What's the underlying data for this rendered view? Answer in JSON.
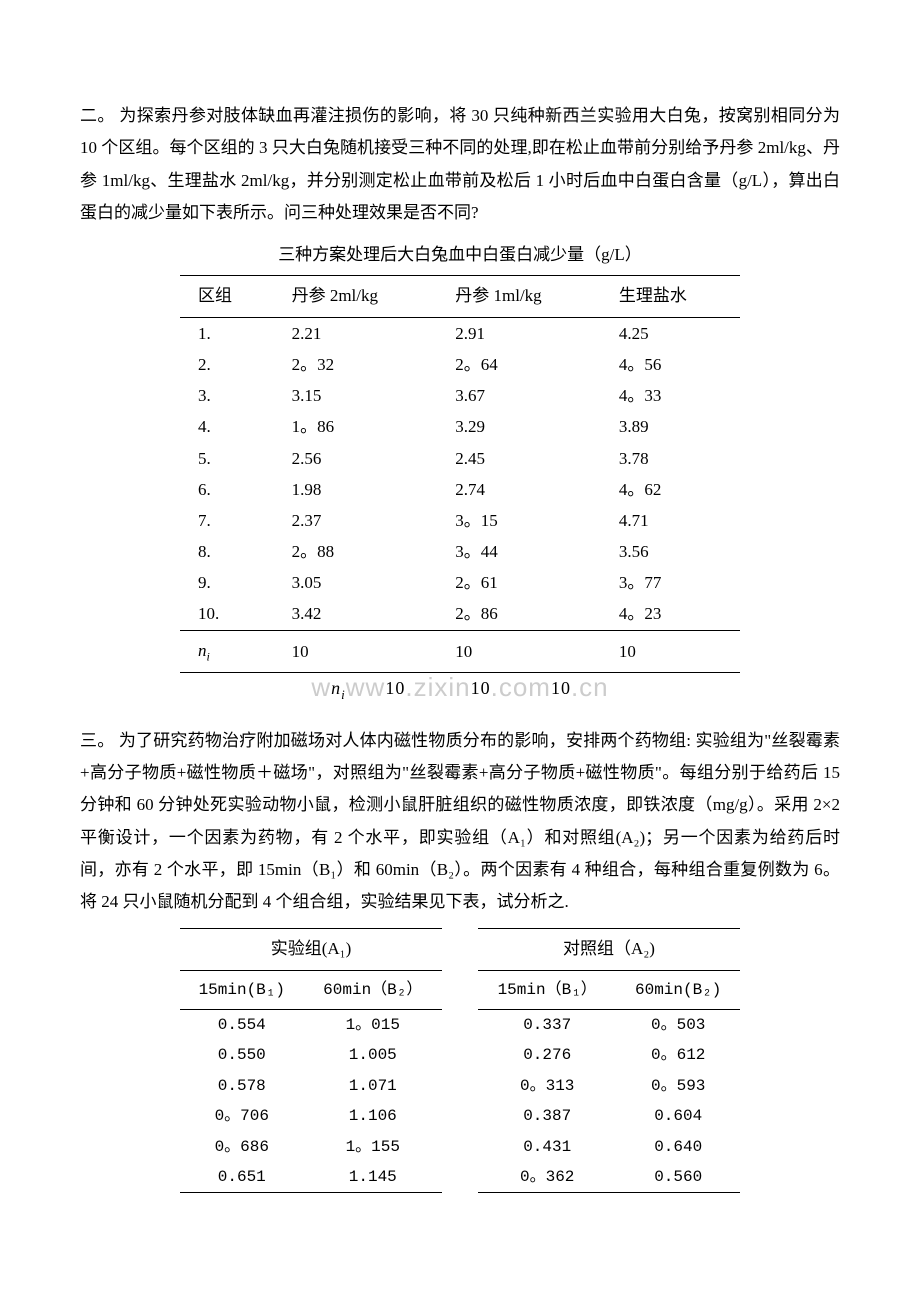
{
  "section2": {
    "paragraph": "二。 为探索丹参对肢体缺血再灌注损伤的影响，将 30 只纯种新西兰实验用大白兔，按窝别相同分为 10 个区组。每个区组的 3 只大白兔随机接受三种不同的处理,即在松止血带前分别给予丹参 2ml/kg、丹参 1ml/kg、生理盐水 2ml/kg，并分别测定松止血带前及松后 1 小时后血中白蛋白含量（g/L），算出白蛋白的减少量如下表所示。问三种处理效果是否不同?",
    "table_title": "三种方案处理后大白兔血中白蛋白减少量（g/L）",
    "headers": [
      "区组",
      "丹参 2ml/kg",
      "丹参 1ml/kg",
      "生理盐水"
    ],
    "rows": [
      [
        "1.",
        "2.21",
        "2.91",
        "4.25"
      ],
      [
        "2.",
        "2。32",
        "2。64",
        "4。56"
      ],
      [
        "3.",
        "3.15",
        "3.67",
        "4。33"
      ],
      [
        "4.",
        "1。86",
        "3.29",
        "3.89"
      ],
      [
        "5.",
        "2.56",
        "2.45",
        "3.78"
      ],
      [
        "6.",
        "1.98",
        "2.74",
        "4。62"
      ],
      [
        "7.",
        "2.37",
        "3。15",
        "4.71"
      ],
      [
        "8.",
        "2。88",
        "3。44",
        "3.56"
      ],
      [
        "9.",
        "3.05",
        "2。61",
        "3。77"
      ],
      [
        "10.",
        "3.42",
        "2。86",
        "4。23"
      ]
    ],
    "footer_label": "n",
    "footer_sub": "i",
    "footer_values": [
      "10",
      "10",
      "10"
    ]
  },
  "watermark": {
    "text_parts": [
      "w",
      "w",
      "w",
      "zixin",
      "com",
      "cn"
    ]
  },
  "section3": {
    "paragraph": "三。 为了研究药物治疗附加磁场对人体内磁性物质分布的影响，安排两个药物组: 实验组为\"丝裂霉素+高分子物质+磁性物质＋磁场\"，对照组为\"丝裂霉素+高分子物质+磁性物质\"。每组分别于给药后 15 分钟和 60 分钟处死实验动物小鼠，检测小鼠肝脏组织的磁性物质浓度，即铁浓度（mg/g）。采用 2×2 平衡设计，一个因素为药物，有 2 个水平，即实验组（A₁）和对照组(A₂)；另一个因素为给药后时间，亦有 2 个水平，即 15min（B₁）和 60min（B₂）。两个因素有 4 种组合，每种组合重复例数为 6。将 24 只小鼠随机分配到 4 个组合组，实验结果见下表，试分析之.",
    "group_a1": "实验组(A₁)",
    "group_a2": "对照组（A₂)",
    "sub_b1": "15min(B₁)",
    "sub_b2": "60min（B₂）",
    "sub_b1_2": "15min（B₁）",
    "sub_b2_2": "60min(B₂)",
    "rows": [
      [
        "0.554",
        "1。015",
        "0.337",
        "0。503"
      ],
      [
        "0.550",
        "1.005",
        "0.276",
        "0。612"
      ],
      [
        "0.578",
        "1.071",
        "0。313",
        "0。593"
      ],
      [
        "0。706",
        "1.106",
        "0.387",
        "0.604"
      ],
      [
        "0。686",
        "1。155",
        "0.431",
        "0.640"
      ],
      [
        "0.651",
        "1.145",
        "0。362",
        "0.560"
      ]
    ]
  }
}
